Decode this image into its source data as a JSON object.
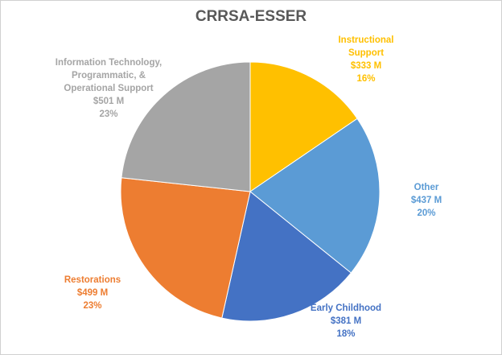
{
  "chart_data": {
    "type": "pie",
    "title": "CRRSA-ESSER",
    "slices": [
      {
        "label": "Instructional Support",
        "label_lines": [
          "Instructional",
          "Support"
        ],
        "value": 333,
        "value_label": "$333 M",
        "percent": "16%",
        "color": "#FFC000"
      },
      {
        "label": "Other",
        "label_lines": [
          "Other"
        ],
        "value": 437,
        "value_label": "$437 M",
        "percent": "20%",
        "color": "#5B9BD5"
      },
      {
        "label": "Early Childhood",
        "label_lines": [
          "Early Childhood"
        ],
        "value": 381,
        "value_label": "$381 M",
        "percent": "18%",
        "color": "#4472C4"
      },
      {
        "label": "Restorations",
        "label_lines": [
          "Restorations"
        ],
        "value": 499,
        "value_label": "$499 M",
        "percent": "23%",
        "color": "#ED7D31"
      },
      {
        "label": "Information Technology, Programmatic, & Operational Support",
        "label_lines": [
          "Information Technology,",
          "Programmatic, &",
          "Operational Support"
        ],
        "value": 501,
        "value_label": "$501 M",
        "percent": "23%",
        "color": "#A5A5A5"
      }
    ],
    "start_angle_deg": 0,
    "direction": "clockwise",
    "legend": "none"
  }
}
